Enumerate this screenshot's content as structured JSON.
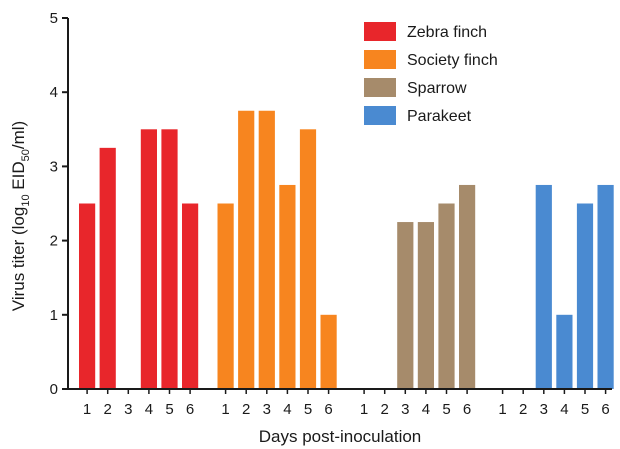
{
  "chart_data": {
    "type": "bar",
    "xlabel": "Days post-inoculation",
    "ylabel": {
      "prefix": "Virus titer (log",
      "log_base": "10",
      "mid": " EID",
      "sub": "50",
      "suffix": "/ml)"
    },
    "ylim": [
      0,
      5
    ],
    "yticks": [
      0,
      1,
      2,
      3,
      4,
      5
    ],
    "categories": [
      "1",
      "2",
      "3",
      "4",
      "5",
      "6"
    ],
    "legend_position": "top-right",
    "series": [
      {
        "name": "Zebra finch",
        "color": "#e8262b",
        "values": [
          2.5,
          3.25,
          0,
          3.5,
          3.5,
          2.5
        ]
      },
      {
        "name": "Society finch",
        "color": "#f7851f",
        "values": [
          2.5,
          3.75,
          3.75,
          2.75,
          3.5,
          1.0
        ]
      },
      {
        "name": "Sparrow",
        "color": "#a68b6b",
        "values": [
          0,
          0,
          2.25,
          2.25,
          2.5,
          2.75
        ]
      },
      {
        "name": "Parakeet",
        "color": "#4a8ad1",
        "values": [
          0,
          0,
          2.75,
          1.0,
          2.5,
          2.75
        ]
      }
    ]
  }
}
